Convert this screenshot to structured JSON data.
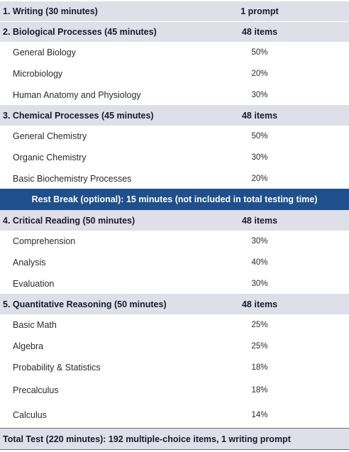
{
  "rows": [
    {
      "type": "section",
      "label": "1. Writing (30 minutes)",
      "value": "1 prompt"
    },
    {
      "type": "section",
      "label": "2. Biological Processes (45 minutes)",
      "value": "48 items"
    },
    {
      "type": "sub",
      "label": "General Biology",
      "value": "50%"
    },
    {
      "type": "sub",
      "label": "Microbiology",
      "value": "20%"
    },
    {
      "type": "sub",
      "label": "Human Anatomy and Physiology",
      "value": "30%"
    },
    {
      "type": "section",
      "label": "3. Chemical Processes (45 minutes)",
      "value": "48 items"
    },
    {
      "type": "sub",
      "label": "General Chemistry",
      "value": "50%"
    },
    {
      "type": "sub",
      "label": "Organic Chemistry",
      "value": "30%"
    },
    {
      "type": "sub",
      "label": "Basic Biochemistry Processes",
      "value": "20%"
    },
    {
      "type": "break",
      "label": "Rest Break (optional): 15 minutes (not included in total testing time)"
    },
    {
      "type": "section",
      "label": "4. Critical Reading (50 minutes)",
      "value": "48 items"
    },
    {
      "type": "sub",
      "label": "Comprehension",
      "value": "30%"
    },
    {
      "type": "sub",
      "label": "Analysis",
      "value": "40%"
    },
    {
      "type": "sub",
      "label": "Evaluation",
      "value": "30%"
    },
    {
      "type": "section",
      "label": "5. Quantitative Reasoning (50 minutes)",
      "value": "48 items"
    },
    {
      "type": "sub",
      "label": "Basic Math",
      "value": "25%"
    },
    {
      "type": "sub",
      "label": "Algebra",
      "value": "25%"
    },
    {
      "type": "sub",
      "label": "Probability & Statistics",
      "value": "18%"
    },
    {
      "type": "sub",
      "label": "Precalculus",
      "value": "18%"
    },
    {
      "type": "sub",
      "label": "Calculus",
      "value": "14%"
    },
    {
      "type": "total",
      "label": "Total Test (220 minutes): 192 multiple-choice items, 1 writing prompt"
    }
  ]
}
